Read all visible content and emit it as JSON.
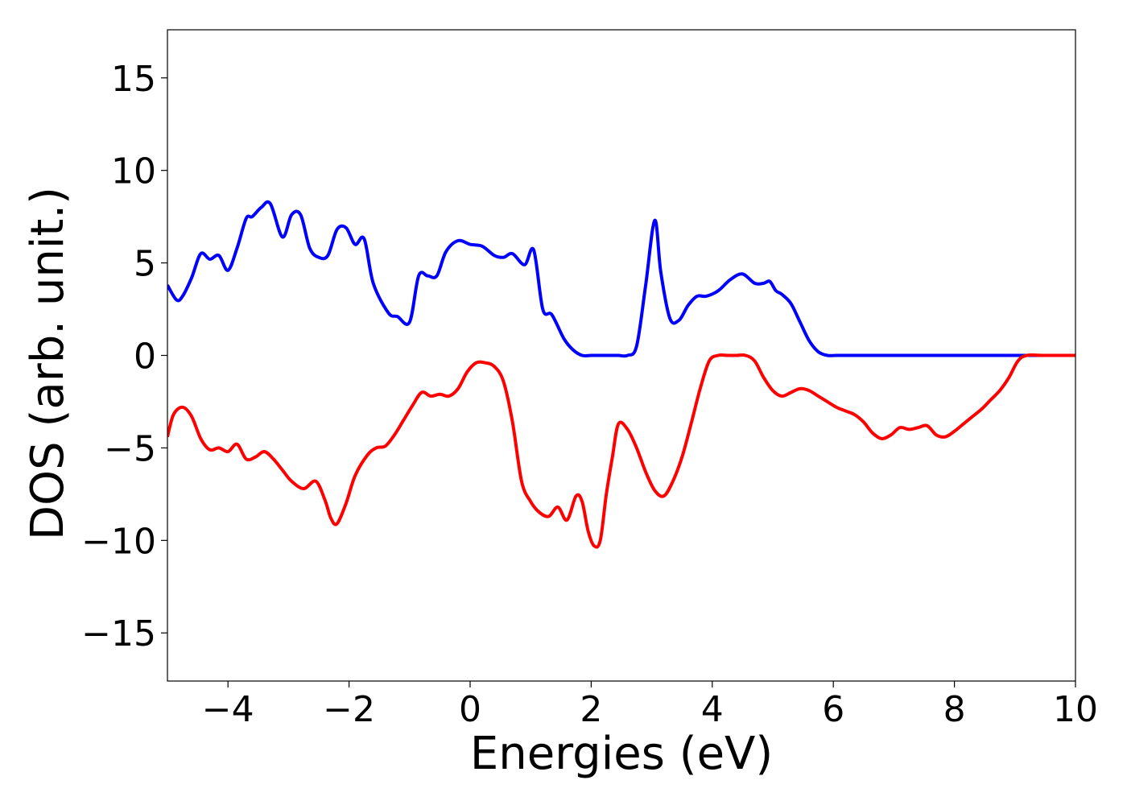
{
  "chart_data": {
    "type": "line",
    "title": "",
    "xlabel": "Energies (eV)",
    "ylabel": "DOS (arb. unit.)",
    "xlim": [
      -5,
      10
    ],
    "ylim": [
      -17.6,
      17.6
    ],
    "xticks": [
      -4,
      -2,
      0,
      2,
      4,
      6,
      8,
      10
    ],
    "yticks": [
      -15,
      -10,
      -5,
      0,
      5,
      10,
      15
    ],
    "xtick_labels": [
      "−4",
      "−2",
      "0",
      "2",
      "4",
      "6",
      "8",
      "10"
    ],
    "ytick_labels": [
      "−15",
      "−10",
      "−5",
      "0",
      "5",
      "10",
      "15"
    ],
    "grid": false,
    "legend": "none",
    "series": [
      {
        "color": "#0000ff",
        "x": [
          -5.0,
          -4.85,
          -4.75,
          -4.6,
          -4.45,
          -4.3,
          -4.15,
          -4.0,
          -3.85,
          -3.7,
          -3.6,
          -3.45,
          -3.3,
          -3.1,
          -2.95,
          -2.8,
          -2.65,
          -2.5,
          -2.35,
          -2.2,
          -2.05,
          -1.9,
          -1.75,
          -1.6,
          -1.35,
          -1.2,
          -1.0,
          -0.85,
          -0.7,
          -0.55,
          -0.4,
          -0.2,
          0.0,
          0.2,
          0.4,
          0.55,
          0.7,
          0.9,
          1.05,
          1.2,
          1.35,
          1.55,
          1.7,
          1.85,
          2.0,
          2.15,
          2.3,
          2.45,
          2.6,
          2.75,
          2.9,
          3.05,
          3.15,
          3.3,
          3.45,
          3.6,
          3.75,
          3.9,
          4.1,
          4.3,
          4.5,
          4.7,
          4.85,
          4.95,
          5.05,
          5.15,
          5.3,
          5.45,
          5.6,
          5.75,
          5.9,
          6.05,
          6.25,
          6.45,
          6.65,
          6.8,
          6.95,
          7.1,
          7.25,
          7.4,
          7.55,
          7.7,
          7.85,
          8.0,
          8.2,
          8.4,
          8.6,
          8.8,
          9.0,
          9.5,
          10.0
        ],
        "y": [
          3.8,
          3.0,
          3.2,
          4.2,
          5.5,
          5.2,
          5.4,
          4.6,
          5.8,
          7.4,
          7.5,
          8.0,
          8.2,
          6.4,
          7.6,
          7.6,
          5.8,
          5.3,
          5.4,
          6.8,
          6.9,
          6.0,
          6.3,
          3.9,
          2.3,
          2.1,
          1.8,
          4.3,
          4.3,
          4.3,
          5.6,
          6.2,
          6.0,
          5.9,
          5.4,
          5.3,
          5.5,
          4.9,
          5.7,
          2.5,
          2.2,
          0.9,
          0.3,
          0.0,
          0.0,
          0.0,
          0.0,
          0.0,
          0.0,
          0.5,
          3.8,
          7.3,
          4.5,
          2.0,
          1.9,
          2.7,
          3.2,
          3.2,
          3.5,
          4.1,
          4.4,
          3.9,
          3.9,
          4.0,
          3.5,
          3.3,
          2.8,
          1.8,
          0.8,
          0.2,
          0.0,
          0.0,
          0.0,
          0.0,
          0.0,
          0.0,
          0.0,
          0.0,
          0.0,
          0.0,
          0.0,
          0.0,
          0.0,
          0.0,
          0.0,
          0.0,
          0.0,
          0.0,
          0.0,
          0.0,
          0.0
        ]
      },
      {
        "color": "#ff0000",
        "x": [
          -5.0,
          -4.9,
          -4.75,
          -4.6,
          -4.45,
          -4.3,
          -4.15,
          -4.0,
          -3.85,
          -3.7,
          -3.55,
          -3.4,
          -3.25,
          -3.1,
          -2.95,
          -2.75,
          -2.55,
          -2.4,
          -2.3,
          -2.2,
          -2.05,
          -1.9,
          -1.7,
          -1.55,
          -1.4,
          -1.25,
          -1.1,
          -0.95,
          -0.8,
          -0.65,
          -0.5,
          -0.35,
          -0.2,
          -0.05,
          0.1,
          0.25,
          0.4,
          0.55,
          0.7,
          0.85,
          1.0,
          1.15,
          1.3,
          1.45,
          1.6,
          1.75,
          1.85,
          1.95,
          2.05,
          2.15,
          2.25,
          2.35,
          2.45,
          2.6,
          2.75,
          2.9,
          3.05,
          3.2,
          3.35,
          3.5,
          3.65,
          3.8,
          3.95,
          4.1,
          4.25,
          4.4,
          4.55,
          4.7,
          4.85,
          5.0,
          5.15,
          5.3,
          5.45,
          5.6,
          5.75,
          5.9,
          6.05,
          6.2,
          6.35,
          6.5,
          6.65,
          6.8,
          6.95,
          7.1,
          7.25,
          7.4,
          7.55,
          7.7,
          7.85,
          8.0,
          8.15,
          8.3,
          8.45,
          8.6,
          8.75,
          8.9,
          9.05,
          9.2,
          9.5,
          10.0
        ],
        "y": [
          -4.4,
          -3.2,
          -2.8,
          -3.3,
          -4.5,
          -5.1,
          -5.0,
          -5.2,
          -4.8,
          -5.6,
          -5.5,
          -5.2,
          -5.6,
          -6.2,
          -6.8,
          -7.2,
          -6.8,
          -7.8,
          -8.8,
          -9.1,
          -8.0,
          -6.5,
          -5.4,
          -5.0,
          -4.9,
          -4.3,
          -3.5,
          -2.7,
          -2.0,
          -2.2,
          -2.1,
          -2.2,
          -1.8,
          -0.9,
          -0.4,
          -0.4,
          -0.6,
          -1.4,
          -3.6,
          -6.8,
          -7.9,
          -8.5,
          -8.7,
          -8.2,
          -8.9,
          -7.6,
          -7.9,
          -9.5,
          -10.3,
          -10.0,
          -7.5,
          -5.5,
          -3.7,
          -4.0,
          -5.0,
          -6.3,
          -7.3,
          -7.6,
          -6.8,
          -5.5,
          -3.7,
          -1.8,
          -0.3,
          0.0,
          0.0,
          0.0,
          0.0,
          -0.3,
          -1.2,
          -1.9,
          -2.2,
          -2.0,
          -1.8,
          -1.9,
          -2.2,
          -2.5,
          -2.8,
          -3.0,
          -3.2,
          -3.6,
          -4.2,
          -4.5,
          -4.3,
          -3.9,
          -4.0,
          -3.9,
          -3.8,
          -4.3,
          -4.4,
          -4.1,
          -3.7,
          -3.3,
          -2.9,
          -2.4,
          -1.9,
          -1.2,
          -0.3,
          0.0,
          0.0,
          0.0
        ]
      }
    ]
  }
}
